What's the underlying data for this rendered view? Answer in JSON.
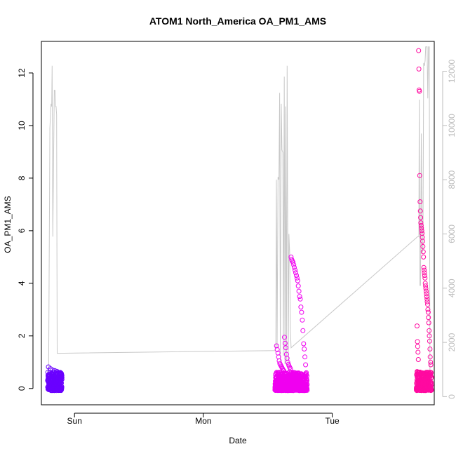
{
  "chart_data": {
    "type": "scatter",
    "title": "ATOM1 North_America OA_PM1_AMS",
    "xlabel": "Date",
    "ylabel": "OA_PM1_AMS",
    "x_axis": {
      "type": "date",
      "range": [
        "2016-08-13T17:50",
        "2016-08-16T19:00"
      ],
      "ticks": [
        {
          "label": "Sun",
          "value": "2016-08-14T00:00"
        },
        {
          "label": "Mon",
          "value": "2016-08-15T00:00"
        },
        {
          "label": "Tue",
          "value": "2016-08-16T00:00"
        }
      ]
    },
    "y_axis": {
      "range": [
        -0.62,
        13.2
      ],
      "ticks": [
        0,
        2,
        4,
        6,
        8,
        10,
        12
      ]
    },
    "y2_axis": {
      "color": "#bdbdbd",
      "range": [
        -300,
        13100
      ],
      "ticks": [
        0,
        2000,
        4000,
        6000,
        8000,
        10000,
        12000
      ]
    },
    "grid": false,
    "legend": "none",
    "colors": {
      "point_day1": "#6a00ff",
      "point_day2": "#f000f0",
      "point_day3": "#ff0aa0",
      "secondary_line": "#c8c8c8"
    },
    "series": [
      {
        "role": "points",
        "segments": [
          {
            "start": "2016-08-13T19:00",
            "end": "2016-08-13T21:40",
            "color": "#6a00ff",
            "base_low": -0.08,
            "base_high": 0.62,
            "spikes": [
              0.82,
              0.75,
              0.7,
              0.68,
              0.65,
              0.6,
              0.58
            ]
          },
          {
            "start": "2016-08-15T13:20",
            "end": "2016-08-15T19:20",
            "color": "#f000f0",
            "base_low": -0.08,
            "base_high": 0.62,
            "spikes": [
              1.62,
              1.48,
              1.35,
              1.2,
              1.05,
              0.95,
              0.9,
              0.85,
              0.8,
              0.75,
              0.7,
              0.68,
              1.95,
              1.72,
              1.55,
              1.3,
              1.15,
              1.0,
              0.92,
              0.85,
              0.8,
              0.75,
              5.0,
              4.9,
              4.85,
              4.8,
              4.7,
              4.6,
              4.5,
              4.4,
              4.3,
              4.2,
              4.1,
              3.9,
              3.7,
              3.5,
              3.4,
              3.1,
              2.9,
              2.6,
              2.2,
              1.7,
              1.5,
              1.2,
              0.9
            ]
          },
          {
            "start": "2016-08-16T15:40",
            "end": "2016-08-16T18:30",
            "color": "#ff0aa0",
            "base_low": -0.08,
            "base_high": 0.65,
            "spikes": [
              2.38,
              1.78,
              1.6,
              1.38,
              1.1,
              12.85,
              12.15,
              11.35,
              11.3,
              8.1,
              7.1,
              6.75,
              6.5,
              6.3,
              6.2,
              6.1,
              6.0,
              5.9,
              5.75,
              5.6,
              5.4,
              5.2,
              5.0,
              4.6,
              4.5,
              4.4,
              4.3,
              4.2,
              4.0,
              3.9,
              3.8,
              3.7,
              3.6,
              3.5,
              3.4,
              3.3,
              3.2,
              3.0,
              2.9,
              2.7,
              2.5,
              2.2,
              2.0,
              1.8,
              1.5,
              1.2,
              1.0,
              0.9
            ]
          }
        ]
      },
      {
        "role": "secondary-line",
        "axis": "y2",
        "color": "#c8c8c8",
        "points": [
          [
            "2016-08-13T19:00",
            1000
          ],
          [
            "2016-08-13T19:10",
            300
          ],
          [
            "2016-08-13T19:25",
            9900
          ],
          [
            "2016-08-13T19:38",
            10800
          ],
          [
            "2016-08-13T19:45",
            10700
          ],
          [
            "2016-08-13T19:50",
            12200
          ],
          [
            "2016-08-13T19:58",
            5900
          ],
          [
            "2016-08-13T20:06",
            8600
          ],
          [
            "2016-08-13T20:14",
            11300
          ],
          [
            "2016-08-13T20:22",
            11300
          ],
          [
            "2016-08-13T20:28",
            10700
          ],
          [
            "2016-08-13T20:34",
            10700
          ],
          [
            "2016-08-13T20:40",
            10400
          ],
          [
            "2016-08-13T20:46",
            1600
          ],
          [
            "2016-08-15T13:20",
            1700
          ],
          [
            "2016-08-15T13:30",
            1900
          ],
          [
            "2016-08-15T13:36",
            8000
          ],
          [
            "2016-08-15T13:44",
            1800
          ],
          [
            "2016-08-15T13:54",
            8100
          ],
          [
            "2016-08-15T14:04",
            8000
          ],
          [
            "2016-08-15T14:12",
            11200
          ],
          [
            "2016-08-15T14:20",
            1300
          ],
          [
            "2016-08-15T14:30",
            10800
          ],
          [
            "2016-08-15T14:38",
            9100
          ],
          [
            "2016-08-15T14:48",
            9000
          ],
          [
            "2016-08-15T14:54",
            1500
          ],
          [
            "2016-08-15T15:04",
            11800
          ],
          [
            "2016-08-15T15:12",
            1200
          ],
          [
            "2016-08-15T15:20",
            10700
          ],
          [
            "2016-08-15T15:28",
            1300
          ],
          [
            "2016-08-15T15:36",
            12200
          ],
          [
            "2016-08-15T15:48",
            1200
          ],
          [
            "2016-08-15T15:56",
            6000
          ],
          [
            "2016-08-15T16:04",
            5300
          ],
          [
            "2016-08-15T16:12",
            2500
          ],
          [
            "2016-08-15T16:20",
            1800
          ],
          [
            "2016-08-16T15:55",
            5900
          ],
          [
            "2016-08-16T16:08",
            5900
          ],
          [
            "2016-08-16T16:12",
            10950
          ],
          [
            "2016-08-16T16:20",
            4100
          ],
          [
            "2016-08-16T16:26",
            4100
          ],
          [
            "2016-08-16T16:36",
            9700
          ],
          [
            "2016-08-16T16:44",
            5300
          ],
          [
            "2016-08-16T16:54",
            5400
          ],
          [
            "2016-08-16T17:02",
            12300
          ],
          [
            "2016-08-16T17:10",
            12200
          ],
          [
            "2016-08-16T17:18",
            12400
          ],
          [
            "2016-08-16T17:24",
            12900
          ],
          [
            "2016-08-16T17:40",
            12900
          ],
          [
            "2016-08-16T17:48",
            11000
          ],
          [
            "2016-08-16T17:56",
            12900
          ],
          [
            "2016-08-16T18:04",
            12900
          ],
          [
            "2016-08-16T18:12",
            200
          ]
        ]
      }
    ]
  }
}
